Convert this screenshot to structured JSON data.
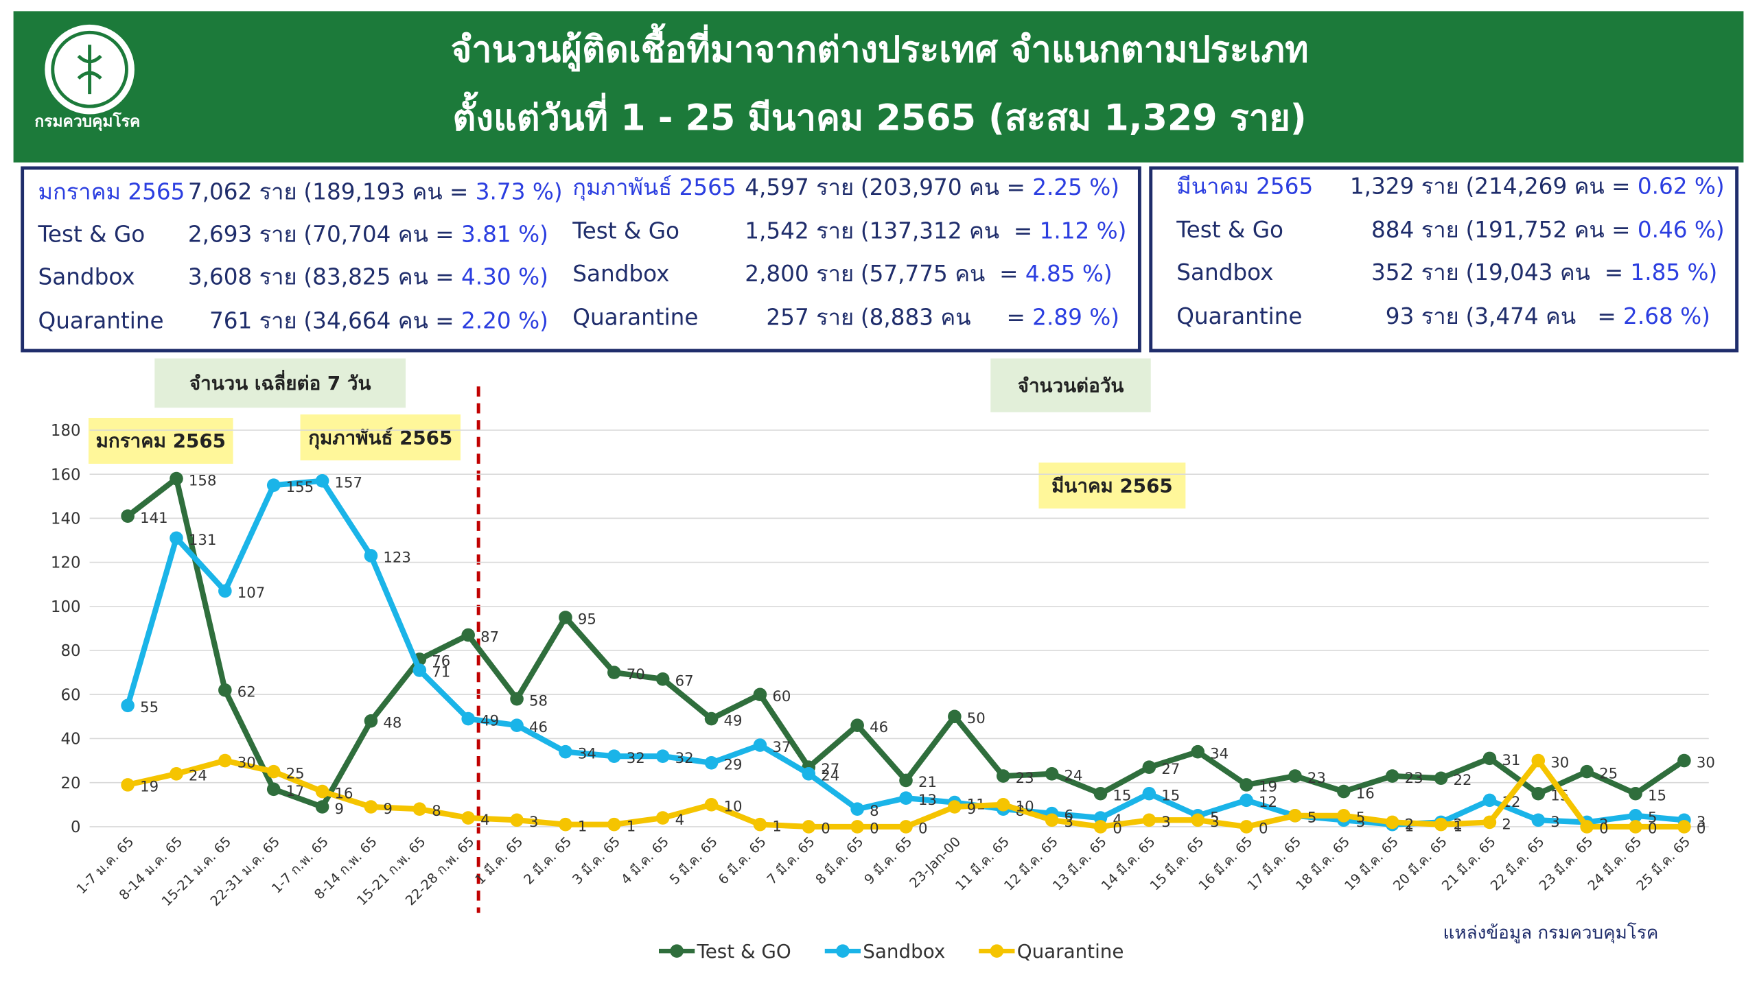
{
  "header": {
    "logo_text": "กรมควบคุมโรค",
    "title_line1": "จำนวนผู้ติดเชื้อที่มาจากต่างประเทศ จำแนกตามประเภท",
    "title_line2": "ตั้งแต่วันที่  1 - 25  มีนาคม  2565 (สะสม 1,329 ราย)"
  },
  "summary_boxes": [
    {
      "columns": [
        {
          "rows": [
            [
              "มกราคม 2565",
              "7,062 ราย",
              "(189,193 คน = ",
              "3.73 %)"
            ],
            [
              "Test & Go",
              "2,693 ราย",
              "(70,704 คน = ",
              "3.81 %)"
            ],
            [
              "Sandbox",
              "3,608 ราย",
              "(83,825 คน = ",
              "4.30 %)"
            ],
            [
              "Quarantine",
              "761 ราย",
              "(34,664 คน = ",
              "2.20 %)"
            ]
          ]
        },
        {
          "rows": [
            [
              "กุมภาพันธ์ 2565",
              "4,597 ราย",
              "(203,970 คน = ",
              "2.25 %)"
            ],
            [
              "Test & Go",
              "1,542 ราย",
              "(137,312 คน  = ",
              "1.12 %)"
            ],
            [
              "Sandbox",
              "2,800 ราย",
              "(57,775 คน  = ",
              "4.85 %)"
            ],
            [
              "Quarantine",
              "257 ราย",
              "(8,883 คน     = ",
              "2.89 %)"
            ]
          ]
        }
      ]
    },
    {
      "columns": [
        {
          "rows": [
            [
              "มีนาคม 2565",
              "1,329 ราย",
              "(214,269 คน = ",
              "0.62 %)"
            ],
            [
              "Test & Go",
              "884 ราย",
              "(191,752 คน = ",
              "0.46 %)"
            ],
            [
              "Sandbox",
              "352 ราย",
              "(19,043 คน  = ",
              "1.85 %)"
            ],
            [
              "Quarantine",
              "93 ราย",
              "(3,474 คน   = ",
              "2.68 %)"
            ]
          ]
        }
      ]
    }
  ],
  "chart_data": {
    "type": "line",
    "categories": [
      "1-7 ม.ค. 65",
      "8-14 ม.ค. 65",
      "15-21 ม.ค. 65",
      "22-31 ม.ค. 65",
      "1-7 ก.พ. 65",
      "8-14 ก.พ. 65",
      "15-21 ก.พ. 65",
      "22-28 ก.พ. 65",
      "1 มี.ค. 65",
      "2 มี.ค. 65",
      "3 มี.ค. 65",
      "4 มี.ค. 65",
      "5 มี.ค. 65",
      "6 มี.ค. 65",
      "7 มี.ค. 65",
      "8 มี.ค. 65",
      "9 มี.ค. 65",
      "23-Jan-00",
      "11 มี.ค. 65",
      "12 มี.ค. 65",
      "13 มี.ค. 65",
      "14 มี.ค. 65",
      "15 มี.ค. 65",
      "16 มี.ค. 65",
      "17 มี.ค. 65",
      "18 มี.ค. 65",
      "19 มี.ค. 65",
      "20 มี.ค. 65",
      "21 มี.ค. 65",
      "22 มี.ค. 65",
      "23 มี.ค. 65",
      "24 มี.ค. 65",
      "25 มี.ค. 65"
    ],
    "series": [
      {
        "name": "Test & GO",
        "color": "#2f6e3c",
        "values": [
          141,
          158,
          62,
          17,
          9,
          48,
          76,
          87,
          58,
          95,
          70,
          67,
          49,
          60,
          27,
          46,
          21,
          50,
          23,
          24,
          15,
          27,
          34,
          19,
          23,
          16,
          23,
          22,
          31,
          15,
          25,
          15,
          30
        ]
      },
      {
        "name": "Sandbox",
        "color": "#1ab4e8",
        "values": [
          55,
          131,
          107,
          155,
          157,
          123,
          71,
          49,
          46,
          34,
          32,
          32,
          29,
          37,
          24,
          8,
          13,
          11,
          8,
          6,
          4,
          15,
          5,
          12,
          5,
          3,
          1,
          2,
          12,
          3,
          2,
          5,
          3
        ]
      },
      {
        "name": "Quarantine",
        "color": "#f5c400",
        "values": [
          19,
          24,
          30,
          25,
          16,
          9,
          8,
          4,
          3,
          1,
          1,
          4,
          10,
          1,
          0,
          0,
          0,
          9,
          10,
          3,
          0,
          3,
          3,
          0,
          5,
          5,
          2,
          1,
          2,
          30,
          0,
          0,
          0
        ]
      }
    ],
    "ylim": [
      0,
      180
    ],
    "yticks": [
      0,
      20,
      40,
      60,
      80,
      100,
      120,
      140,
      160,
      180
    ],
    "grid": true,
    "legend": "bottom",
    "annotations": {
      "weekly_note": "จำนวน เฉลี่ยต่อ 7 วัน",
      "daily_note": "จำนวนต่อวัน",
      "jan": "มกราคม 2565",
      "feb": "กุมภาพันธ์ 2565",
      "mar": "มีนาคม 2565",
      "source": "แหล่งข้อมูล กรมควบคุมโรค"
    }
  }
}
